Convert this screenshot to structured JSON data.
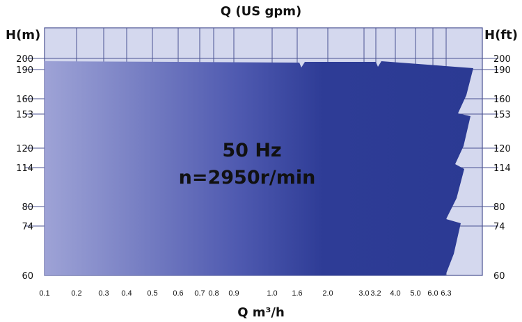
{
  "chart_data": {
    "type": "area",
    "title": "Q (US gpm)",
    "xlabel": "Q m³/h",
    "ylabel_left": "H(m)",
    "ylabel_right": "H(ft)",
    "annotation_line1": "50 Hz",
    "annotation_line2": "n=2950r/min",
    "x_ticks": [
      "0.1",
      "0.2",
      "0.3",
      "0.4",
      "0.5",
      "0.6",
      "0.7",
      "0.8",
      "0.9",
      "1.0",
      "1.6",
      "2.0",
      "3.0",
      "3.2",
      "4.0",
      "5.0",
      "6.0",
      "6.3"
    ],
    "y_ticks_left": [
      "200",
      "190",
      "160",
      "153",
      "120",
      "114",
      "80",
      "74",
      "60"
    ],
    "y_ticks_right": [
      "200",
      "190",
      "160",
      "153",
      "120",
      "114",
      "80",
      "74",
      "60"
    ],
    "grid": true,
    "colors": {
      "plot_background": "#d4d8ee",
      "grid": "#4a5291",
      "fill_dark": "#2b3a93",
      "fill_light": "#9ea3d6"
    }
  }
}
